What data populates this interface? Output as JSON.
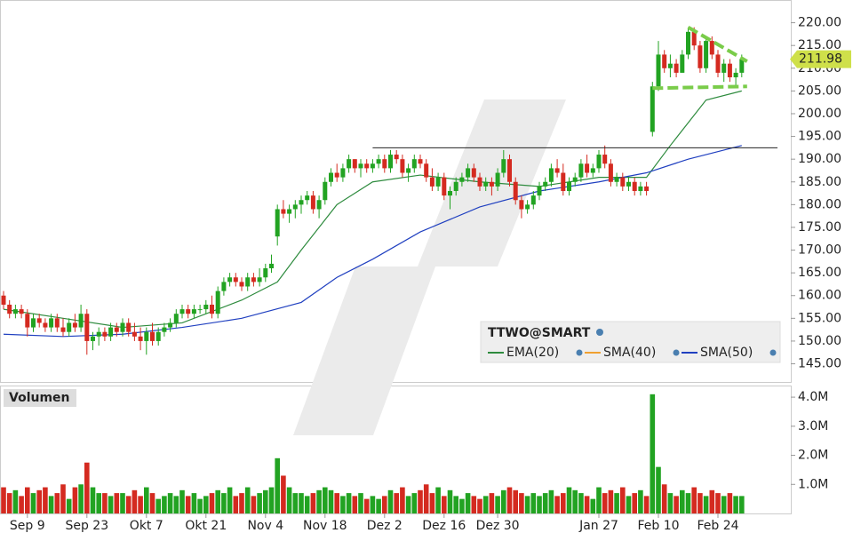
{
  "chart_data": {
    "type": "candlestick",
    "categories": [
      null,
      null,
      null,
      null,
      "Sep 9",
      null,
      null,
      null,
      null,
      null,
      null,
      null,
      null,
      null,
      "Sep 23",
      null,
      null,
      null,
      null,
      null,
      null,
      null,
      null,
      null,
      "Okt 7",
      null,
      null,
      null,
      null,
      null,
      null,
      null,
      null,
      null,
      "Okt 21",
      null,
      null,
      null,
      null,
      null,
      null,
      null,
      null,
      null,
      "Nov 4",
      null,
      null,
      null,
      null,
      null,
      null,
      null,
      null,
      null,
      "Nov 18",
      null,
      null,
      null,
      null,
      null,
      null,
      null,
      null,
      null,
      "Dez 2",
      null,
      null,
      null,
      null,
      null,
      null,
      null,
      null,
      null,
      "Dez 16",
      null,
      null,
      null,
      null,
      null,
      null,
      null,
      null,
      "Dez 30",
      null,
      null,
      null,
      null,
      null,
      null,
      null,
      null,
      null,
      null,
      null,
      null,
      null,
      null,
      null,
      null,
      "Jan 27",
      null,
      null,
      null,
      null,
      null,
      null,
      null,
      null,
      null,
      "Feb 10",
      null,
      null,
      null,
      null,
      null,
      null,
      null,
      null,
      null,
      "Feb 24",
      null,
      null,
      null,
      null
    ],
    "ohlc": [
      [
        160,
        161,
        157,
        158
      ],
      [
        158,
        159,
        155,
        156
      ],
      [
        156,
        158,
        155,
        157
      ],
      [
        157,
        158,
        155,
        156
      ],
      [
        156,
        157,
        151,
        153
      ],
      [
        153,
        156,
        152,
        155
      ],
      [
        155,
        156,
        153,
        154
      ],
      [
        154,
        155,
        152,
        153
      ],
      [
        153,
        156,
        152,
        155
      ],
      [
        155,
        156,
        152,
        153
      ],
      [
        153,
        155,
        151,
        152
      ],
      [
        152,
        155,
        151,
        154
      ],
      [
        154,
        156,
        152,
        153
      ],
      [
        153,
        158,
        152,
        156
      ],
      [
        156,
        157,
        147,
        150
      ],
      [
        150,
        152,
        148,
        151
      ],
      [
        151,
        153,
        149,
        152
      ],
      [
        152,
        153,
        150,
        151
      ],
      [
        151,
        154,
        150,
        153
      ],
      [
        153,
        154,
        151,
        152
      ],
      [
        152,
        155,
        151,
        154
      ],
      [
        154,
        155,
        151,
        152
      ],
      [
        152,
        154,
        150,
        151
      ],
      [
        151,
        153,
        148,
        150
      ],
      [
        150,
        153,
        147,
        152
      ],
      [
        152,
        154,
        149,
        150
      ],
      [
        150,
        153,
        149,
        152
      ],
      [
        152,
        154,
        151,
        153
      ],
      [
        153,
        155,
        152,
        154
      ],
      [
        154,
        157,
        153,
        156
      ],
      [
        156,
        158,
        155,
        157
      ],
      [
        157,
        158,
        155,
        156
      ],
      [
        156,
        158,
        155,
        157
      ],
      [
        157,
        158,
        156,
        157
      ],
      [
        157,
        159,
        156,
        158
      ],
      [
        158,
        160,
        155,
        156
      ],
      [
        156,
        162,
        155,
        161
      ],
      [
        161,
        164,
        160,
        163
      ],
      [
        163,
        165,
        162,
        164
      ],
      [
        164,
        165,
        162,
        163
      ],
      [
        163,
        164,
        161,
        162
      ],
      [
        162,
        165,
        161,
        164
      ],
      [
        164,
        165,
        162,
        163
      ],
      [
        163,
        166,
        162,
        164
      ],
      [
        164,
        167,
        163,
        166
      ],
      [
        166,
        169,
        165,
        167
      ],
      [
        173,
        180,
        171,
        179
      ],
      [
        179,
        181,
        177,
        178
      ],
      [
        178,
        180,
        176,
        179
      ],
      [
        179,
        181,
        177,
        180
      ],
      [
        180,
        182,
        178,
        181
      ],
      [
        181,
        183,
        180,
        182
      ],
      [
        182,
        183,
        178,
        179
      ],
      [
        179,
        182,
        177,
        181
      ],
      [
        181,
        186,
        180,
        185
      ],
      [
        185,
        188,
        184,
        187
      ],
      [
        187,
        189,
        185,
        186
      ],
      [
        186,
        189,
        185,
        188
      ],
      [
        188,
        191,
        187,
        190
      ],
      [
        190,
        190,
        187,
        188
      ],
      [
        188,
        190,
        186,
        189
      ],
      [
        189,
        190,
        187,
        188
      ],
      [
        188,
        190,
        187,
        189
      ],
      [
        189,
        191,
        188,
        190
      ],
      [
        190,
        191,
        187,
        188
      ],
      [
        188,
        192,
        187,
        191
      ],
      [
        191,
        192,
        189,
        190
      ],
      [
        190,
        191,
        186,
        187
      ],
      [
        187,
        189,
        185,
        188
      ],
      [
        188,
        191,
        187,
        190
      ],
      [
        190,
        191,
        188,
        189
      ],
      [
        189,
        190,
        185,
        186
      ],
      [
        186,
        188,
        183,
        184
      ],
      [
        184,
        187,
        183,
        186
      ],
      [
        186,
        187,
        181,
        182
      ],
      [
        182,
        184,
        179,
        183
      ],
      [
        183,
        186,
        182,
        185
      ],
      [
        185,
        187,
        184,
        186
      ],
      [
        186,
        189,
        185,
        188
      ],
      [
        188,
        189,
        185,
        186
      ],
      [
        186,
        187,
        183,
        184
      ],
      [
        184,
        186,
        183,
        185
      ],
      [
        185,
        186,
        182,
        184
      ],
      [
        184,
        188,
        183,
        187
      ],
      [
        187,
        192,
        186,
        190
      ],
      [
        190,
        191,
        184,
        185
      ],
      [
        185,
        186,
        180,
        181
      ],
      [
        181,
        182,
        177,
        179
      ],
      [
        179,
        181,
        178,
        180
      ],
      [
        180,
        183,
        179,
        182
      ],
      [
        182,
        185,
        181,
        184
      ],
      [
        184,
        186,
        183,
        185
      ],
      [
        185,
        189,
        184,
        188
      ],
      [
        188,
        190,
        186,
        187
      ],
      [
        187,
        189,
        182,
        183
      ],
      [
        183,
        186,
        182,
        185
      ],
      [
        185,
        187,
        184,
        186
      ],
      [
        186,
        190,
        185,
        189
      ],
      [
        189,
        191,
        186,
        187
      ],
      [
        187,
        189,
        186,
        188
      ],
      [
        188,
        192,
        187,
        191
      ],
      [
        191,
        193,
        188,
        189
      ],
      [
        189,
        190,
        184,
        185
      ],
      [
        185,
        187,
        184,
        186
      ],
      [
        186,
        187,
        183,
        184
      ],
      [
        184,
        186,
        183,
        185
      ],
      [
        185,
        186,
        182,
        183
      ],
      [
        183,
        185,
        182,
        184
      ],
      [
        184,
        185,
        182,
        183
      ],
      [
        196,
        207,
        195,
        206
      ],
      [
        206,
        216,
        205,
        213
      ],
      [
        213,
        214,
        209,
        210
      ],
      [
        210,
        213,
        208,
        211
      ],
      [
        211,
        212,
        208,
        209
      ],
      [
        209,
        214,
        209,
        213
      ],
      [
        213,
        219,
        212,
        218
      ],
      [
        218,
        219,
        214,
        215
      ],
      [
        215,
        216,
        209,
        210
      ],
      [
        210,
        217,
        209,
        216
      ],
      [
        216,
        217,
        212,
        213
      ],
      [
        213,
        214,
        208,
        209
      ],
      [
        209,
        212,
        207,
        211
      ],
      [
        211,
        212,
        207,
        208
      ],
      [
        208,
        210,
        206,
        209
      ],
      [
        209,
        213,
        208,
        211.98
      ]
    ],
    "up_color": "#22a322",
    "down_color": "#d42a20",
    "ylim": [
      141,
      225
    ],
    "yticks": [
      {
        "value": 145,
        "label": "145.00"
      },
      {
        "value": 150,
        "label": "150.00"
      },
      {
        "value": 155,
        "label": "155.00"
      },
      {
        "value": 160,
        "label": "160.00"
      },
      {
        "value": 165,
        "label": "165.00"
      },
      {
        "value": 170,
        "label": "170.00"
      },
      {
        "value": 175,
        "label": "175.00"
      },
      {
        "value": 180,
        "label": "180.00"
      },
      {
        "value": 185,
        "label": "185.00"
      },
      {
        "value": 190,
        "label": "190.00"
      },
      {
        "value": 195,
        "label": "195.00"
      },
      {
        "value": 200,
        "label": "200.00"
      },
      {
        "value": 205,
        "label": "205.00"
      },
      {
        "value": 210,
        "label": "210.00"
      },
      {
        "value": 215,
        "label": "215.00"
      },
      {
        "value": 220,
        "label": "220.00"
      }
    ],
    "legend_title": "TTWO@SMART",
    "overlays": [
      {
        "name": "EMA(20)",
        "color": "#2e8b3e",
        "x": [
          0,
          10,
          20,
          30,
          40,
          46,
          50,
          56,
          62,
          70,
          80,
          90,
          100,
          108,
          112,
          118,
          124
        ],
        "values": [
          157,
          155,
          153,
          154,
          159,
          163,
          170,
          180,
          185,
          186.5,
          185,
          184,
          186,
          186,
          193,
          203,
          205
        ]
      },
      {
        "name": "SMA(40)",
        "color": "#f0a030"
      },
      {
        "name": "SMA(50)",
        "color": "#2040c0",
        "x": [
          0,
          10,
          20,
          30,
          40,
          50,
          56,
          62,
          70,
          80,
          90,
          100,
          108,
          115,
          124
        ],
        "values": [
          151.5,
          151,
          151.5,
          153,
          155,
          158.5,
          164,
          168,
          174,
          179.5,
          183,
          185,
          187,
          190,
          193
        ]
      }
    ],
    "resistance": 192.5,
    "trend_lines": [
      {
        "x": [
          115,
          124
        ],
        "values": [
          219,
          211.5
        ],
        "color": "#7acc4a"
      },
      {
        "x": [
          109,
          124
        ],
        "values": [
          205.6,
          206
        ],
        "color": "#7acc4a"
      }
    ],
    "last_price_color": "#cfe04a",
    "volume": {
      "title": "Volumen",
      "values": [
        900000,
        700000,
        800000,
        600000,
        900000,
        700000,
        800000,
        900000,
        600000,
        700000,
        1000000,
        500000,
        900000,
        1000000,
        1750000,
        900000,
        700000,
        700000,
        600000,
        700000,
        700000,
        600000,
        800000,
        600000,
        900000,
        700000,
        500000,
        600000,
        700000,
        600000,
        800000,
        600000,
        700000,
        500000,
        600000,
        700000,
        800000,
        700000,
        900000,
        600000,
        700000,
        900000,
        600000,
        700000,
        800000,
        900000,
        1900000,
        1300000,
        900000,
        700000,
        700000,
        600000,
        700000,
        800000,
        900000,
        800000,
        700000,
        600000,
        700000,
        600000,
        700000,
        500000,
        600000,
        500000,
        600000,
        800000,
        700000,
        900000,
        600000,
        700000,
        800000,
        1000000,
        700000,
        900000,
        600000,
        800000,
        600000,
        500000,
        700000,
        600000,
        500000,
        600000,
        700000,
        600000,
        800000,
        900000,
        800000,
        700000,
        600000,
        700000,
        600000,
        700000,
        800000,
        600000,
        700000,
        900000,
        800000,
        700000,
        600000,
        500000,
        900000,
        700000,
        800000,
        700000,
        900000,
        600000,
        700000,
        800000,
        600000,
        4100000,
        1600000,
        1000000,
        700000,
        600000,
        800000,
        700000,
        900000,
        700000,
        600000,
        800000,
        700000,
        600000,
        700000,
        600000,
        600000
      ],
      "ylim": [
        0,
        4400000
      ],
      "yticks": [
        {
          "value": 1000000,
          "label": "1.0M"
        },
        {
          "value": 2000000,
          "label": "2.0M"
        },
        {
          "value": 3000000,
          "label": "3.0M"
        },
        {
          "value": 4000000,
          "label": "4.0M"
        }
      ]
    }
  }
}
